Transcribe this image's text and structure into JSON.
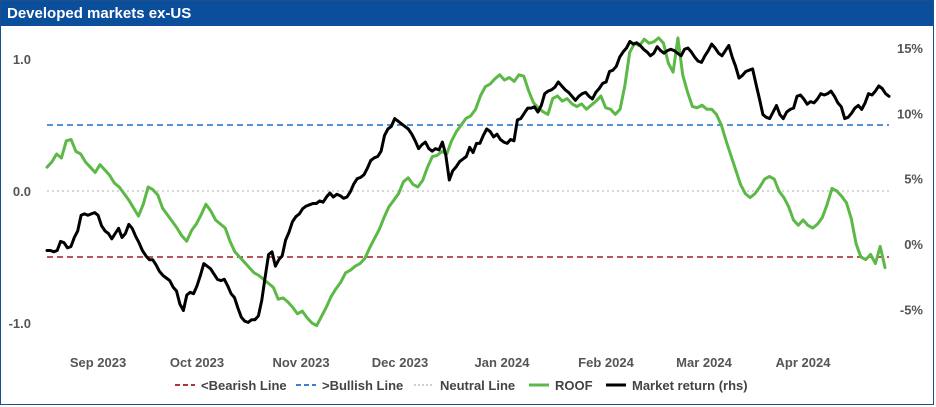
{
  "header": {
    "title": "Developed markets ex-US"
  },
  "chart_data": {
    "type": "line",
    "title": "Developed markets ex-US",
    "x_labels": [
      "Sep 2023",
      "Oct 2023",
      "Nov 2023",
      "Dec 2023",
      "Jan 2024",
      "Feb 2024",
      "Mar 2024",
      "Apr 2024"
    ],
    "y_left": {
      "ylim": [
        -1.3,
        1.2
      ],
      "ticks": [
        1.0,
        0.0,
        -1.0
      ],
      "tick_labels": [
        "1.0",
        "0.0",
        "-1.0"
      ]
    },
    "y_right": {
      "ylim": [
        -7,
        17
      ],
      "ticks": [
        15,
        10,
        5,
        0,
        -5
      ],
      "tick_labels": [
        "15%",
        "10%",
        "5%",
        "0%",
        "-5%"
      ]
    },
    "reference_lines": [
      {
        "name": "<Bearish Line",
        "value": -0.5,
        "color": "#a11d21",
        "style": "dashed"
      },
      {
        "name": ">Bullish Line",
        "value": 0.5,
        "color": "#1f6fc9",
        "style": "dashed"
      },
      {
        "name": "Neutral Line",
        "value": 0.0,
        "color": "#bfbfbf",
        "style": "dotted"
      }
    ],
    "series": [
      {
        "name": "ROOF",
        "axis": "left",
        "color": "#5cb947",
        "values": [
          0.18,
          0.22,
          0.28,
          0.25,
          0.38,
          0.39,
          0.3,
          0.28,
          0.22,
          0.18,
          0.14,
          0.2,
          0.16,
          0.12,
          0.06,
          0.03,
          -0.02,
          -0.07,
          -0.13,
          -0.19,
          -0.1,
          0.03,
          0.01,
          -0.03,
          -0.13,
          -0.18,
          -0.23,
          -0.28,
          -0.34,
          -0.38,
          -0.3,
          -0.25,
          -0.18,
          -0.1,
          -0.15,
          -0.22,
          -0.25,
          -0.28,
          -0.38,
          -0.46,
          -0.5,
          -0.54,
          -0.58,
          -0.62,
          -0.64,
          -0.67,
          -0.7,
          -0.73,
          -0.82,
          -0.81,
          -0.84,
          -0.88,
          -0.93,
          -0.91,
          -0.96,
          -1.0,
          -1.02,
          -0.95,
          -0.88,
          -0.8,
          -0.74,
          -0.69,
          -0.62,
          -0.6,
          -0.57,
          -0.55,
          -0.51,
          -0.43,
          -0.36,
          -0.29,
          -0.2,
          -0.12,
          -0.07,
          -0.02,
          0.07,
          0.1,
          0.05,
          0.03,
          0.08,
          0.18,
          0.26,
          0.27,
          0.3,
          0.28,
          0.38,
          0.45,
          0.5,
          0.55,
          0.57,
          0.62,
          0.72,
          0.79,
          0.81,
          0.85,
          0.88,
          0.84,
          0.86,
          0.83,
          0.88,
          0.87,
          0.76,
          0.67,
          0.63,
          0.6,
          0.58,
          0.7,
          0.72,
          0.68,
          0.7,
          0.66,
          0.64,
          0.66,
          0.62,
          0.65,
          0.68,
          0.72,
          0.63,
          0.62,
          0.58,
          0.62,
          0.8,
          1.05,
          1.12,
          1.1,
          1.15,
          1.12,
          1.13,
          1.16,
          1.12,
          0.97,
          0.9,
          1.16,
          0.88,
          0.75,
          0.64,
          0.63,
          0.65,
          0.62,
          0.62,
          0.58,
          0.5,
          0.38,
          0.27,
          0.16,
          0.05,
          -0.02,
          -0.05,
          -0.02,
          0.03,
          0.09,
          0.11,
          0.09,
          0.0,
          -0.05,
          -0.12,
          -0.22,
          -0.26,
          -0.22,
          -0.26,
          -0.28,
          -0.25,
          -0.2,
          -0.1,
          0.02,
          0.0,
          -0.04,
          -0.09,
          -0.21,
          -0.4,
          -0.5,
          -0.52,
          -0.48,
          -0.55,
          -0.42,
          -0.58
        ]
      },
      {
        "name": "Market return (rhs)",
        "axis": "right",
        "color": "#000000",
        "values": [
          -0.5,
          -0.5,
          -0.6,
          -0.5,
          0.2,
          0.1,
          -0.3,
          -0.2,
          0.5,
          1.0,
          2.2,
          2.3,
          2.2,
          2.3,
          2.4,
          2.2,
          1.4,
          1.0,
          0.8,
          0.4,
          0.8,
          1.2,
          0.5,
          0.8,
          1.5,
          1.2,
          0.6,
          0.1,
          -0.5,
          -0.9,
          -1.2,
          -1.2,
          -1.6,
          -2.1,
          -2.4,
          -2.6,
          -2.8,
          -3.3,
          -3.6,
          -4.6,
          -5.1,
          -3.9,
          -3.7,
          -3.8,
          -3.2,
          -2.4,
          -1.5,
          -1.7,
          -1.9,
          -2.3,
          -2.7,
          -2.8,
          -2.7,
          -3.2,
          -3.8,
          -4.1,
          -4.9,
          -5.6,
          -5.9,
          -6.0,
          -5.8,
          -5.8,
          -5.5,
          -4.3,
          -2.5,
          -0.8,
          -0.6,
          -1.7,
          -1.2,
          -0.9,
          0.3,
          0.9,
          1.7,
          2.1,
          2.3,
          2.7,
          2.9,
          3.0,
          3.1,
          3.1,
          3.3,
          3.2,
          3.6,
          3.9,
          3.6,
          3.8,
          3.7,
          3.5,
          3.6,
          4.0,
          4.6,
          5.0,
          5.1,
          5.3,
          5.8,
          6.4,
          6.6,
          6.7,
          7.1,
          8.3,
          8.8,
          9.0,
          9.6,
          9.4,
          9.2,
          9.0,
          8.8,
          8.4,
          7.9,
          7.3,
          7.6,
          7.8,
          7.3,
          7.1,
          7.3,
          7.2,
          7.8,
          6.8,
          4.9,
          5.6,
          5.9,
          6.3,
          6.5,
          6.7,
          7.4,
          7.0,
          7.7,
          7.7,
          8.3,
          8.8,
          8.6,
          8.2,
          8.4,
          8.0,
          7.8,
          7.7,
          8.0,
          7.9,
          9.5,
          9.6,
          10.0,
          10.4,
          10.4,
          10.5,
          10.1,
          10.6,
          11.5,
          11.7,
          11.8,
          12.0,
          12.4,
          12.1,
          11.8,
          11.6,
          11.3,
          11.0,
          11.3,
          11.5,
          11.6,
          11.3,
          11.1,
          11.6,
          11.9,
          12.3,
          12.4,
          13.2,
          13.3,
          13.6,
          14.3,
          14.7,
          15.0,
          15.5,
          15.3,
          15.4,
          15.2,
          14.9,
          14.7,
          14.4,
          14.6,
          15.1,
          14.8,
          14.6,
          14.8,
          14.9,
          14.8,
          14.6,
          14.4,
          14.9,
          15.0,
          14.7,
          14.3,
          14.0,
          13.9,
          14.4,
          14.8,
          15.3,
          15.0,
          14.6,
          14.4,
          14.8,
          15.2,
          14.3,
          13.6,
          12.7,
          12.9,
          13.2,
          13.3,
          13.4,
          12.2,
          11.1,
          9.9,
          9.7,
          9.6,
          10.1,
          10.6,
          9.9,
          9.6,
          10.1,
          10.3,
          10.4,
          11.3,
          11.4,
          11.1,
          10.7,
          10.9,
          10.8,
          11.1,
          11.5,
          11.4,
          11.5,
          11.7,
          11.3,
          10.8,
          10.5,
          9.6,
          9.7,
          10.0,
          10.4,
          10.6,
          10.3,
          10.8,
          11.5,
          11.4,
          11.7,
          12.1,
          11.9,
          11.5,
          11.3
        ]
      }
    ],
    "legend": {
      "placement": "bottom",
      "items": [
        "<Bearish Line",
        ">Bullish Line",
        "Neutral Line",
        "ROOF",
        "Market return (rhs)"
      ]
    },
    "grid": false
  }
}
